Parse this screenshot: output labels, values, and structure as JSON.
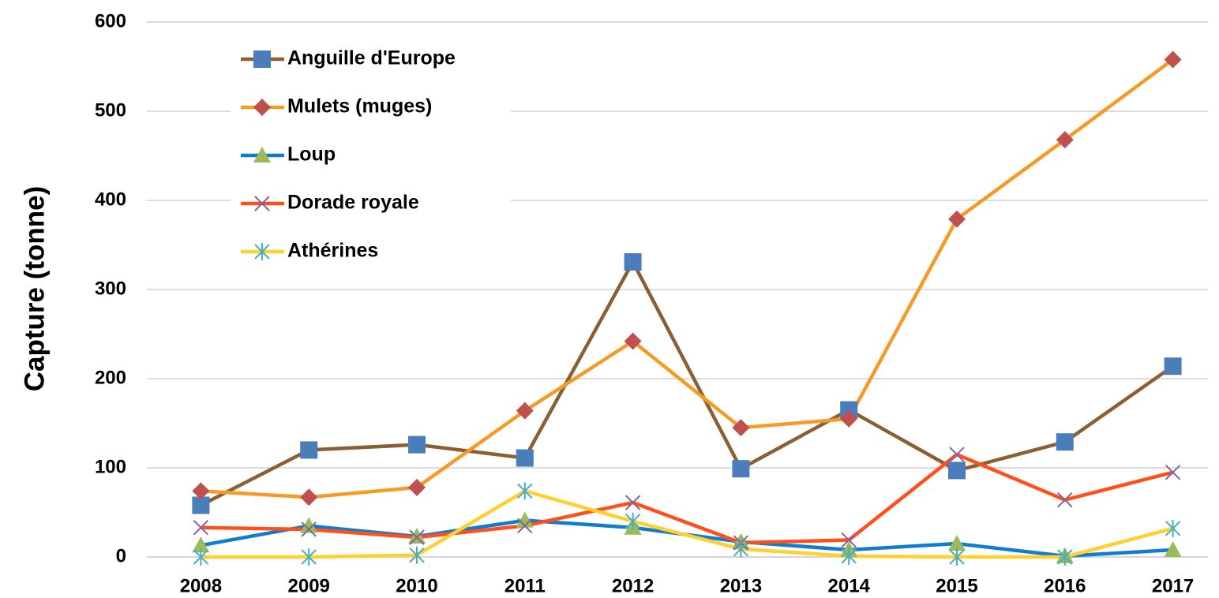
{
  "chart_data": {
    "type": "line",
    "ylabel": "Capture (tonne)",
    "categories": [
      "2008",
      "2009",
      "2010",
      "2011",
      "2012",
      "2013",
      "2014",
      "2015",
      "2016",
      "2017"
    ],
    "series": [
      {
        "name": "Anguille d'Europe",
        "color": "#8b5e34",
        "marker": "square",
        "marker_color": "#4a7ebb",
        "values": [
          58,
          120,
          126,
          111,
          331,
          99,
          165,
          97,
          129,
          214
        ]
      },
      {
        "name": "Mulets (muges)",
        "color": "#f59a23",
        "marker": "diamond",
        "marker_color": "#c0504d",
        "values": [
          74,
          67,
          78,
          164,
          242,
          145,
          155,
          379,
          468,
          558
        ]
      },
      {
        "name": "Loup",
        "color": "#0f7dcf",
        "marker": "triangle",
        "marker_color": "#9bbb59",
        "values": [
          13,
          35,
          23,
          41,
          33,
          17,
          8,
          15,
          1,
          8
        ]
      },
      {
        "name": "Dorade royale",
        "color": "#ff4f1a",
        "marker": "x",
        "marker_color": "#8064a2",
        "values": [
          33,
          31,
          22,
          35,
          61,
          16,
          19,
          115,
          64,
          95
        ]
      },
      {
        "name": "Athérines",
        "color": "#ffd030",
        "marker": "asterisk",
        "marker_color": "#4bacc6",
        "values": [
          0,
          0,
          2,
          74,
          40,
          9,
          1,
          0,
          0,
          32
        ]
      }
    ],
    "ylim": [
      0,
      600
    ],
    "yticks": [
      0,
      100,
      200,
      300,
      400,
      500,
      600
    ],
    "grid": true,
    "legend": "top-left"
  }
}
